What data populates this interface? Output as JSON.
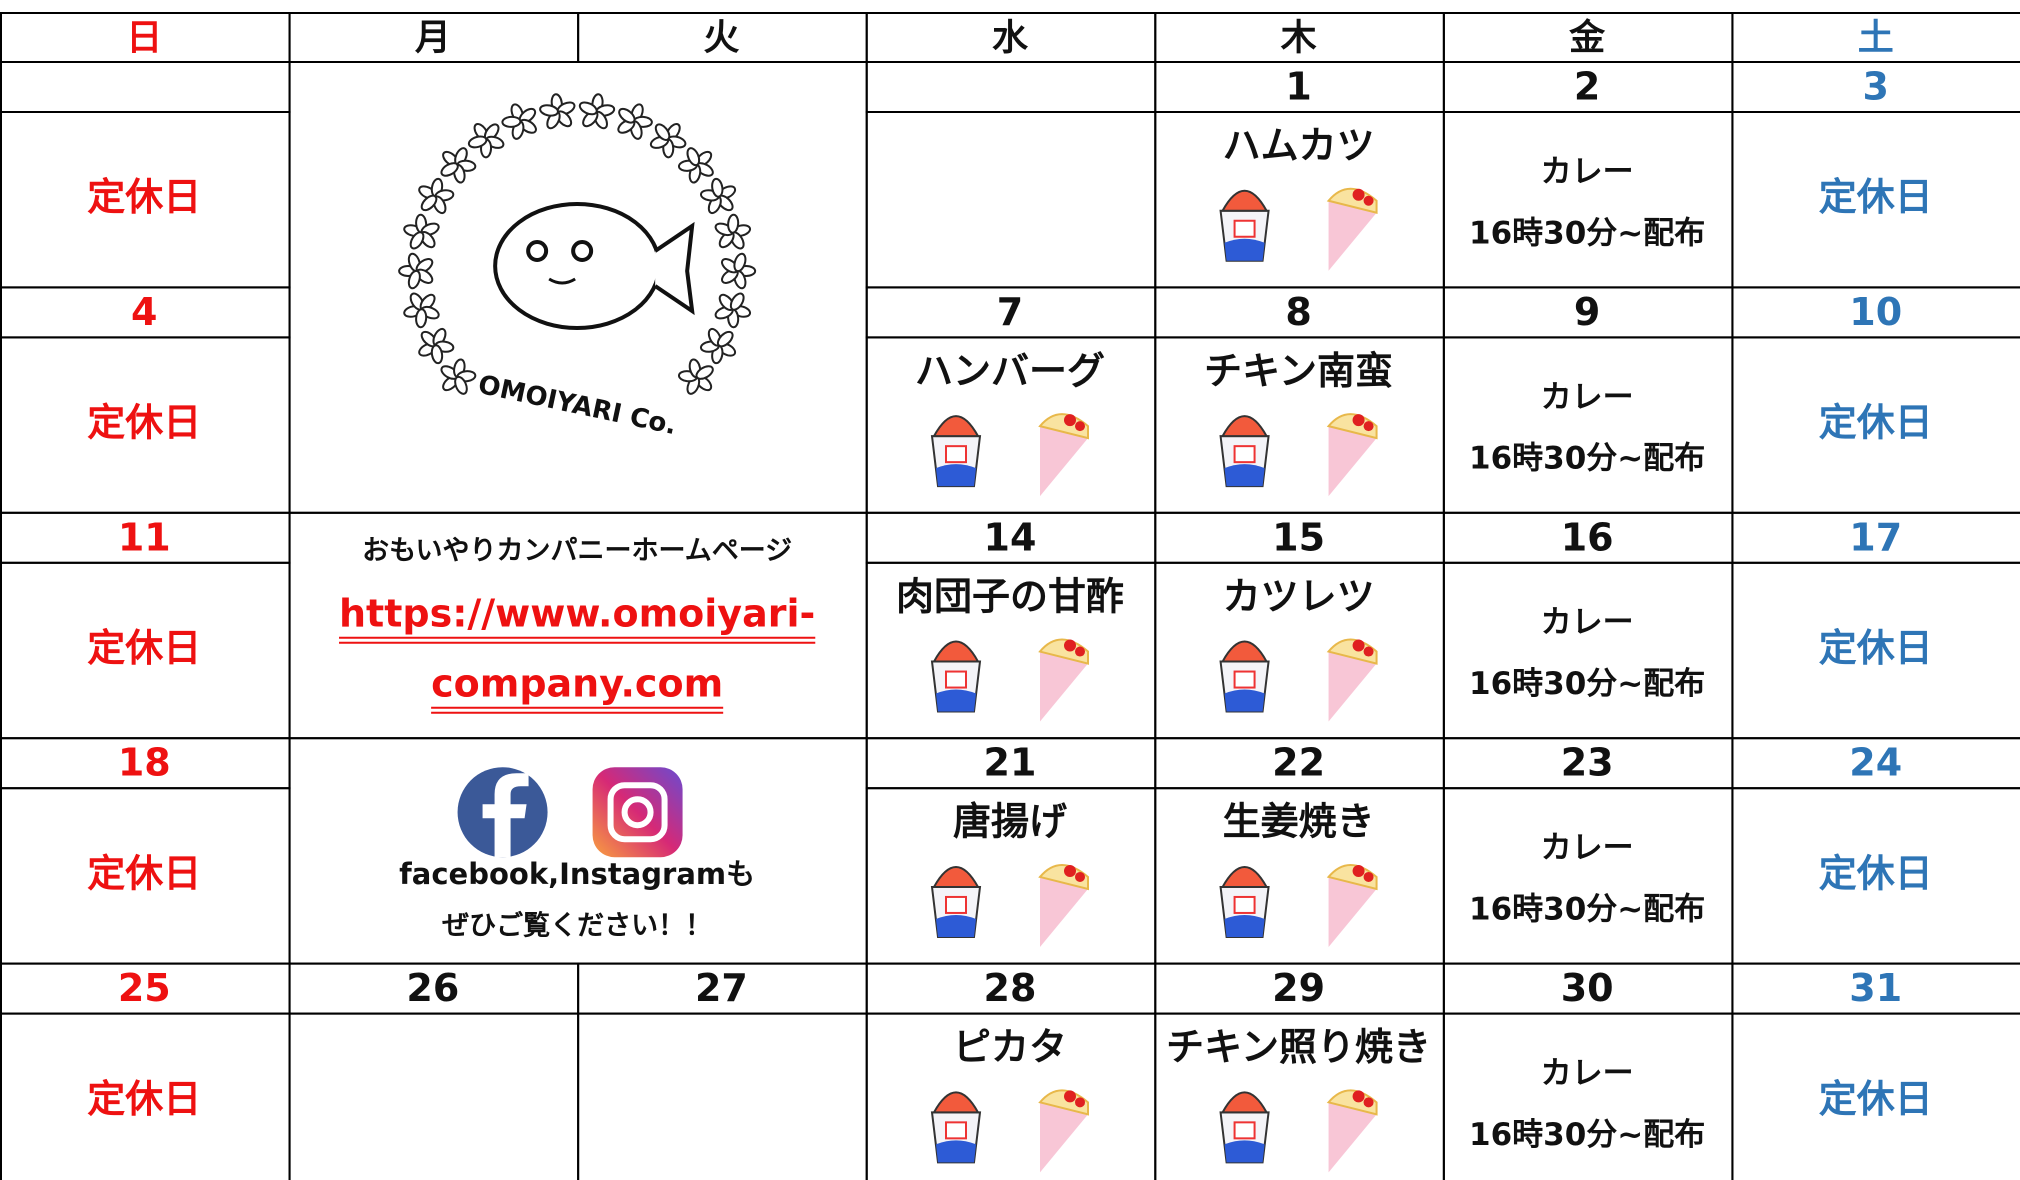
{
  "weekdays": [
    "日",
    "月",
    "火",
    "水",
    "木",
    "金",
    "土"
  ],
  "weeks": [
    {
      "days": [
        {
          "date": null,
          "menu": "定休日"
        },
        null,
        null,
        {
          "date": null,
          "menu": null
        },
        {
          "date": 1,
          "menu": "ハムカツ"
        },
        {
          "date": 2,
          "menu": [
            "カレー",
            "16時30分~配布"
          ]
        },
        {
          "date": 3,
          "menu": "定休日"
        }
      ]
    },
    {
      "days": [
        {
          "date": 4,
          "menu": "定休日"
        },
        null,
        null,
        {
          "date": 7,
          "menu": "ハンバーグ"
        },
        {
          "date": 8,
          "menu": "チキン南蛮"
        },
        {
          "date": 9,
          "menu": [
            "カレー",
            "16時30分~配布"
          ]
        },
        {
          "date": 10,
          "menu": "定休日"
        }
      ]
    },
    {
      "days": [
        {
          "date": 11,
          "menu": "定休日"
        },
        null,
        null,
        {
          "date": 14,
          "menu": "肉団子の甘酢"
        },
        {
          "date": 15,
          "menu": "カツレツ"
        },
        {
          "date": 16,
          "menu": [
            "カレー",
            "16時30分~配布"
          ]
        },
        {
          "date": 17,
          "menu": "定休日"
        }
      ]
    },
    {
      "days": [
        {
          "date": 18,
          "menu": "定休日"
        },
        null,
        null,
        {
          "date": 21,
          "menu": "唐揚げ"
        },
        {
          "date": 22,
          "menu": "生姜焼き"
        },
        {
          "date": 23,
          "menu": [
            "カレー",
            "16時30分~配布"
          ]
        },
        {
          "date": 24,
          "menu": "定休日"
        }
      ]
    },
    {
      "days": [
        {
          "date": 25,
          "menu": "定休日"
        },
        {
          "date": 26,
          "menu": null
        },
        {
          "date": 27,
          "menu": null
        },
        {
          "date": 28,
          "menu": "ピカタ"
        },
        {
          "date": 29,
          "menu": "チキン照り焼き"
        },
        {
          "date": 30,
          "menu": [
            "カレー",
            "16時30分~配布"
          ]
        },
        {
          "date": 31,
          "menu": "定休日"
        }
      ]
    }
  ],
  "logo": {
    "caption": "OMOIYARI Co."
  },
  "homepage": {
    "title": "おもいやりカンパニーホームページ",
    "url_lines": [
      "https://www.omoiyari-",
      "company.com"
    ]
  },
  "social": {
    "lines": [
      "facebook,Instagramも",
      "ぜひご覧ください！！"
    ]
  }
}
